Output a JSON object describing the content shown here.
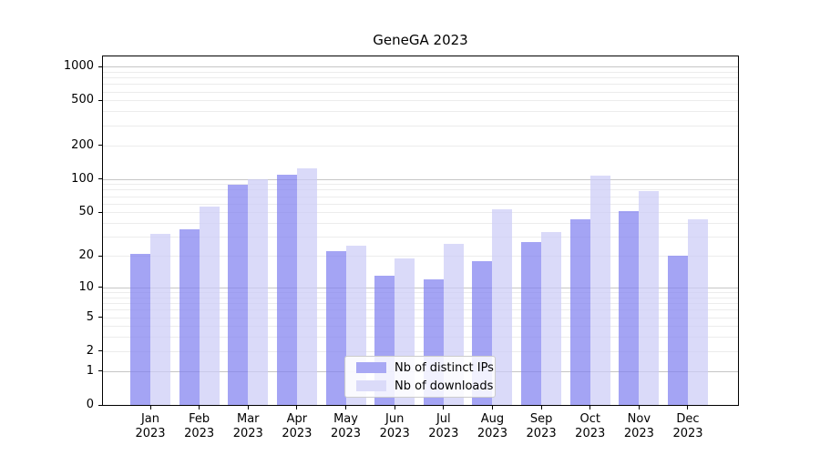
{
  "chart_data": {
    "type": "bar",
    "title": "GeneGA 2023",
    "categories": [
      "Jan",
      "Feb",
      "Mar",
      "Apr",
      "May",
      "Jun",
      "Jul",
      "Aug",
      "Sep",
      "Oct",
      "Nov",
      "Dec"
    ],
    "category_sublabel": "2023",
    "series": [
      {
        "name": "Nb of distinct IPs",
        "color": "rgba(129,129,240,0.72)",
        "solid_color": "#a8a8f4",
        "values": [
          21,
          35,
          89,
          110,
          22,
          13,
          12,
          18,
          27,
          43,
          51,
          20
        ]
      },
      {
        "name": "Nb of downloads",
        "color": "rgba(204,204,246,0.72)",
        "solid_color": "#dbdbf9",
        "values": [
          32,
          56,
          100,
          125,
          25,
          19,
          26,
          53,
          33,
          107,
          78,
          43
        ]
      }
    ],
    "xlabel": "",
    "ylabel": "",
    "yscale": "log10(1+y)",
    "ylim": [
      0,
      1230
    ],
    "yticks": [
      0,
      1,
      2,
      5,
      10,
      20,
      50,
      100,
      200,
      500,
      1000
    ],
    "major_gridlines": [
      1,
      10,
      100,
      1000
    ],
    "minor_gridlines": [
      2,
      3,
      4,
      5,
      6,
      7,
      8,
      9,
      20,
      30,
      40,
      50,
      60,
      70,
      80,
      90,
      200,
      300,
      400,
      500,
      600,
      700,
      800,
      900
    ],
    "grid": true,
    "legend_position": "inside-bottom-center"
  },
  "colors": {
    "major_grid": "#c6c6c6",
    "minor_grid": "#ececec",
    "axis": "#000000",
    "legend_border": "#cccccc",
    "legend_bg": "rgba(255,255,255,0.85)",
    "text": "#000000"
  }
}
